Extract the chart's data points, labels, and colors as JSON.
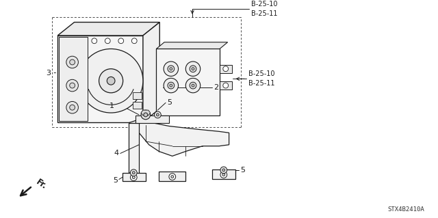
{
  "bg_color": "#ffffff",
  "lc": "#1a1a1a",
  "part_code_top": "B-25-10\nB-25-11",
  "part_code_right": "B-25-10\nB-25-11",
  "label_1": "1",
  "label_2": "2",
  "label_3": "3",
  "label_4": "4",
  "label_5": "5",
  "footer_left": "Fr.",
  "footer_right": "STX4B2410A",
  "font_size_label": 8,
  "font_size_code": 7,
  "font_size_footer": 6.5
}
